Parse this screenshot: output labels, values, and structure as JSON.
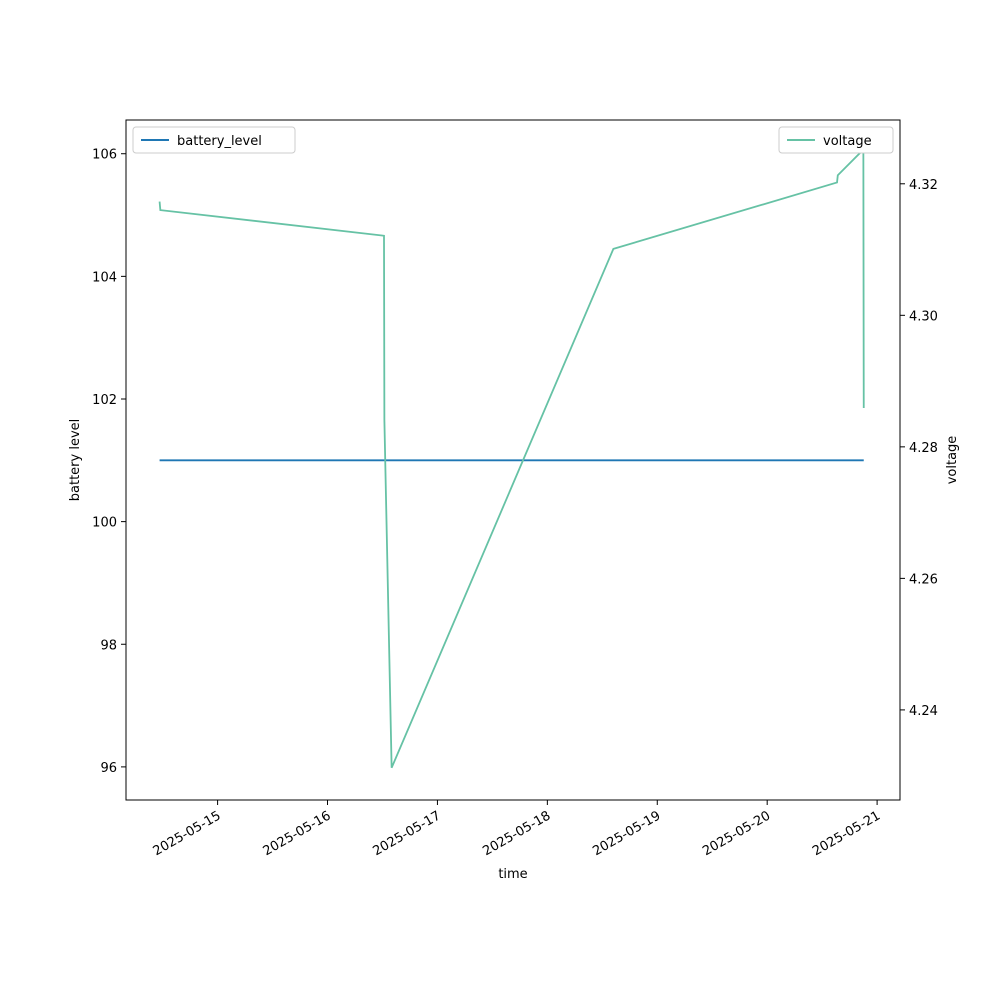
{
  "chart_data": {
    "type": "line",
    "x_label": "time",
    "y_label": "battery level",
    "y2_label": "voltage",
    "x": [
      "2025-05-14 11:20",
      "2025-05-14 11:30",
      "2025-05-16 12:20",
      "2025-05-16 12:25",
      "2025-05-16 14:00",
      "2025-05-18 14:25",
      "2025-05-20 15:15",
      "2025-05-20 15:25",
      "2025-05-20 21:00",
      "2025-05-20 21:05"
    ],
    "series": [
      {
        "name": "battery_level",
        "color": "#1f77b4",
        "axis": "y",
        "values": [
          101,
          101,
          101,
          101,
          101,
          101,
          101,
          101,
          101,
          101
        ]
      },
      {
        "name": "voltage",
        "color": "#66c2a5",
        "axis": "y2",
        "values": [
          4.3173,
          4.316,
          4.3121,
          4.2841,
          4.2312,
          4.3101,
          4.3202,
          4.3213,
          4.3252,
          4.2859
        ]
      }
    ],
    "xlim": [
      "2025-05-14 04:00",
      "2025-05-21 05:00"
    ],
    "xticks": [
      "2025-05-15",
      "2025-05-16",
      "2025-05-17",
      "2025-05-18",
      "2025-05-19",
      "2025-05-20",
      "2025-05-21"
    ],
    "ylim": [
      95.46,
      106.55
    ],
    "yticks": [
      96,
      98,
      100,
      102,
      104,
      106
    ],
    "y2lim": [
      4.2263,
      4.3297
    ],
    "y2ticks": [
      4.24,
      4.26,
      4.28,
      {
        "value": 4.3,
        "label": "4.30"
      },
      4.32
    ],
    "legend": {
      "y": "upper left",
      "y2": "upper right"
    }
  }
}
